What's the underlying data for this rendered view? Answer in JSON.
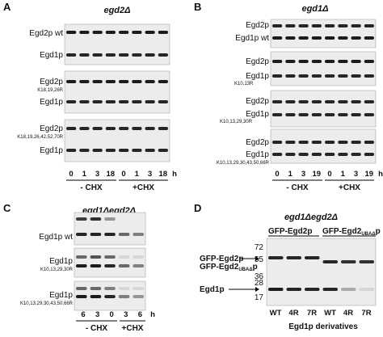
{
  "panels": [
    {
      "label": "A",
      "title": "egd2Δ",
      "rows": [
        {
          "label": "Egd2p wt"
        },
        {
          "label": "Egd1p"
        },
        {
          "label": "Egd2p",
          "mutations": "K18,19,26R"
        },
        {
          "label": "Egd1p"
        },
        {
          "label": "Egd2p",
          "mutations": "K18,19,26,42,52,70R"
        },
        {
          "label": "Egd1p"
        }
      ],
      "lanes": [
        "0",
        "1",
        "3",
        "18",
        "0",
        "1",
        "3",
        "18"
      ],
      "time_unit": "h",
      "groups": [
        "- CHX",
        "+CHX"
      ]
    },
    {
      "label": "B",
      "title": "egd1Δ",
      "rows": [
        {
          "label": "Egd2p"
        },
        {
          "label": "Egd1p wt"
        },
        {
          "label": "Egd2p"
        },
        {
          "label": "Egd1p",
          "mutations": "K10,13R"
        },
        {
          "label": "Egd2p"
        },
        {
          "label": "Egd1p",
          "mutations": "K10,13,29,30R"
        },
        {
          "label": "Egd2p"
        },
        {
          "label": "Egd1p",
          "mutations": "K10,13,29,30,43,50,66R"
        }
      ],
      "lanes": [
        "0",
        "1",
        "3",
        "19",
        "0",
        "1",
        "3",
        "19"
      ],
      "time_unit": "h",
      "groups": [
        "- CHX",
        "+CHX"
      ]
    },
    {
      "label": "C",
      "title": "egd1Δegd2Δ",
      "rows": [
        {
          "label": "Egd1p wt"
        },
        {
          "label": "Egd1p",
          "mutations": "K10,13,29,30R"
        },
        {
          "label": "Egd1p",
          "mutations": "K10,13,29,30,43,50,66R"
        }
      ],
      "lanes": [
        "6",
        "3",
        "0",
        "3",
        "6"
      ],
      "time_unit": "h",
      "groups": [
        "- CHX",
        "+CHX"
      ]
    },
    {
      "label": "D",
      "title": "egd1Δegd2Δ",
      "columns": [
        {
          "label": "GFP-Egd2p"
        },
        {
          "label": "GFP-Egd2",
          "subscript": "UBAΔ",
          "suffix": "p"
        }
      ],
      "rows": [
        {
          "label": "GFP-Egd2p"
        },
        {
          "label": "GFP-Egd2",
          "subscript": "UBAΔ",
          "suffix": "p"
        },
        {
          "label": "Egd1p"
        }
      ],
      "markers": [
        "72",
        "55",
        "36",
        "28",
        "17"
      ],
      "lanes": [
        "WT",
        "4R",
        "7R",
        "WT",
        "4R",
        "7R"
      ],
      "xlabel": "Egd1p derivatives"
    }
  ]
}
